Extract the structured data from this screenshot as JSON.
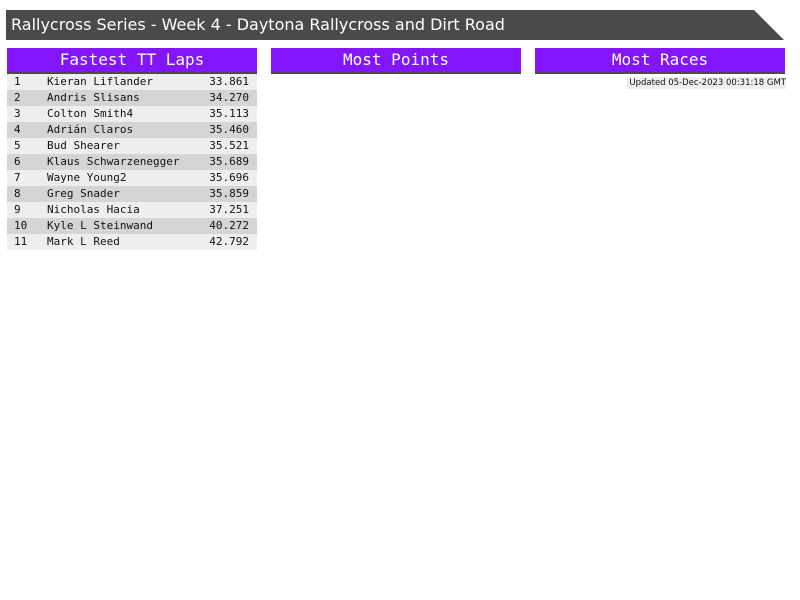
{
  "title": "Rallycross Series - Week 4 - Daytona Rallycross and Dirt Road",
  "panels": {
    "fastest": {
      "title": "Fastest TT Laps",
      "rows": [
        {
          "pos": "1",
          "name": "Kieran Liflander",
          "time": "33.861"
        },
        {
          "pos": "2",
          "name": "Andris Slisans",
          "time": "34.270"
        },
        {
          "pos": "3",
          "name": "Colton Smith4",
          "time": "35.113"
        },
        {
          "pos": "4",
          "name": "Adrián Claros",
          "time": "35.460"
        },
        {
          "pos": "5",
          "name": "Bud Shearer",
          "time": "35.521"
        },
        {
          "pos": "6",
          "name": "Klaus Schwarzenegger",
          "time": "35.689"
        },
        {
          "pos": "7",
          "name": "Wayne Young2",
          "time": "35.696"
        },
        {
          "pos": "8",
          "name": "Greg Snader",
          "time": "35.859"
        },
        {
          "pos": "9",
          "name": "Nicholas Hacia",
          "time": "37.251"
        },
        {
          "pos": "10",
          "name": "Kyle L Steinwand",
          "time": "40.272"
        },
        {
          "pos": "11",
          "name": "Mark L Reed",
          "time": "42.792"
        }
      ]
    },
    "points": {
      "title": "Most Points"
    },
    "races": {
      "title": "Most Races"
    }
  },
  "updated": "Updated 05-Dec-2023 00:31:18 GMT",
  "colors": {
    "header": "#8215fa",
    "title_bar": "#4a4a4a"
  }
}
